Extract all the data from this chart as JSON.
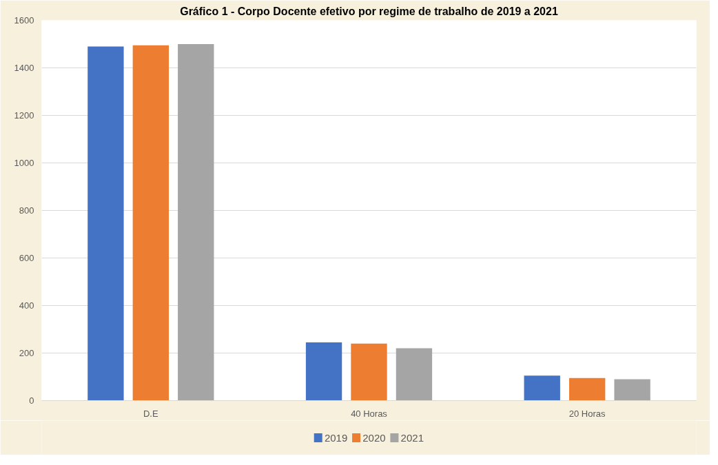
{
  "chart_data": {
    "type": "bar",
    "title": "Gráfico 1 - Corpo Docente efetivo por regime de trabalho de 2019 a 2021",
    "categories": [
      "D.E",
      "40 Horas",
      "20 Horas"
    ],
    "series": [
      {
        "name": "2019",
        "color": "#4472c4",
        "values": [
          1490,
          245,
          105
        ]
      },
      {
        "name": "2020",
        "color": "#ed7d31",
        "values": [
          1495,
          240,
          95
        ]
      },
      {
        "name": "2021",
        "color": "#a5a5a5",
        "values": [
          1500,
          220,
          90
        ]
      }
    ],
    "ylim": [
      0,
      1600
    ],
    "yticks": [
      0,
      200,
      400,
      600,
      800,
      1000,
      1200,
      1400,
      1600
    ],
    "grid": "y",
    "legend": "bottom"
  }
}
